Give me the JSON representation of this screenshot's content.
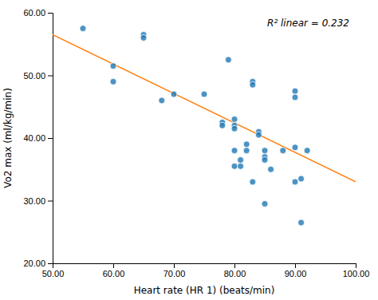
{
  "chart_data": {
    "type": "scatter",
    "annotation": "R² linear = 0.232",
    "xlabel": "Heart rate (HR 1) (beats/min)",
    "ylabel": "Vo2 max (ml/kg/min)",
    "series": [
      {
        "type": "scatter",
        "x": [
          55,
          60,
          60,
          65,
          65,
          68,
          70,
          75,
          78,
          78,
          79,
          80,
          80,
          80,
          80,
          80,
          81,
          81,
          82,
          82,
          83,
          83,
          83,
          84,
          84,
          85,
          85,
          85,
          85,
          86,
          88,
          90,
          90,
          90,
          90,
          91,
          91,
          92
        ],
        "values": [
          57.5,
          51.5,
          49,
          56.5,
          56,
          46,
          47,
          47,
          42.5,
          42,
          52.5,
          43,
          42,
          41.5,
          38,
          35.5,
          35.5,
          36.5,
          39,
          38,
          33,
          49,
          48.5,
          41,
          40.5,
          38,
          37,
          36.5,
          29.5,
          35,
          38,
          47.5,
          46.5,
          38.5,
          33,
          33.5,
          26.5,
          38
        ]
      },
      {
        "type": "line",
        "x": [
          50,
          100
        ],
        "values": [
          56.5,
          33.0
        ]
      }
    ],
    "xlim": [
      50,
      100
    ],
    "ylim": [
      20,
      60
    ],
    "xticks": [
      {
        "value": 50,
        "label": "50.00"
      },
      {
        "value": 60,
        "label": "60.00"
      },
      {
        "value": 70,
        "label": "70.00"
      },
      {
        "value": 80,
        "label": "80.00"
      },
      {
        "value": 90,
        "label": "90.00"
      },
      {
        "value": 100,
        "label": "100.00"
      }
    ],
    "yticks": [
      {
        "value": 20,
        "label": "20.00"
      },
      {
        "value": 30,
        "label": "30.00"
      },
      {
        "value": 40,
        "label": "40.00"
      },
      {
        "value": 50,
        "label": "50.00"
      },
      {
        "value": 60,
        "label": "60.00"
      }
    ],
    "grid": false
  }
}
